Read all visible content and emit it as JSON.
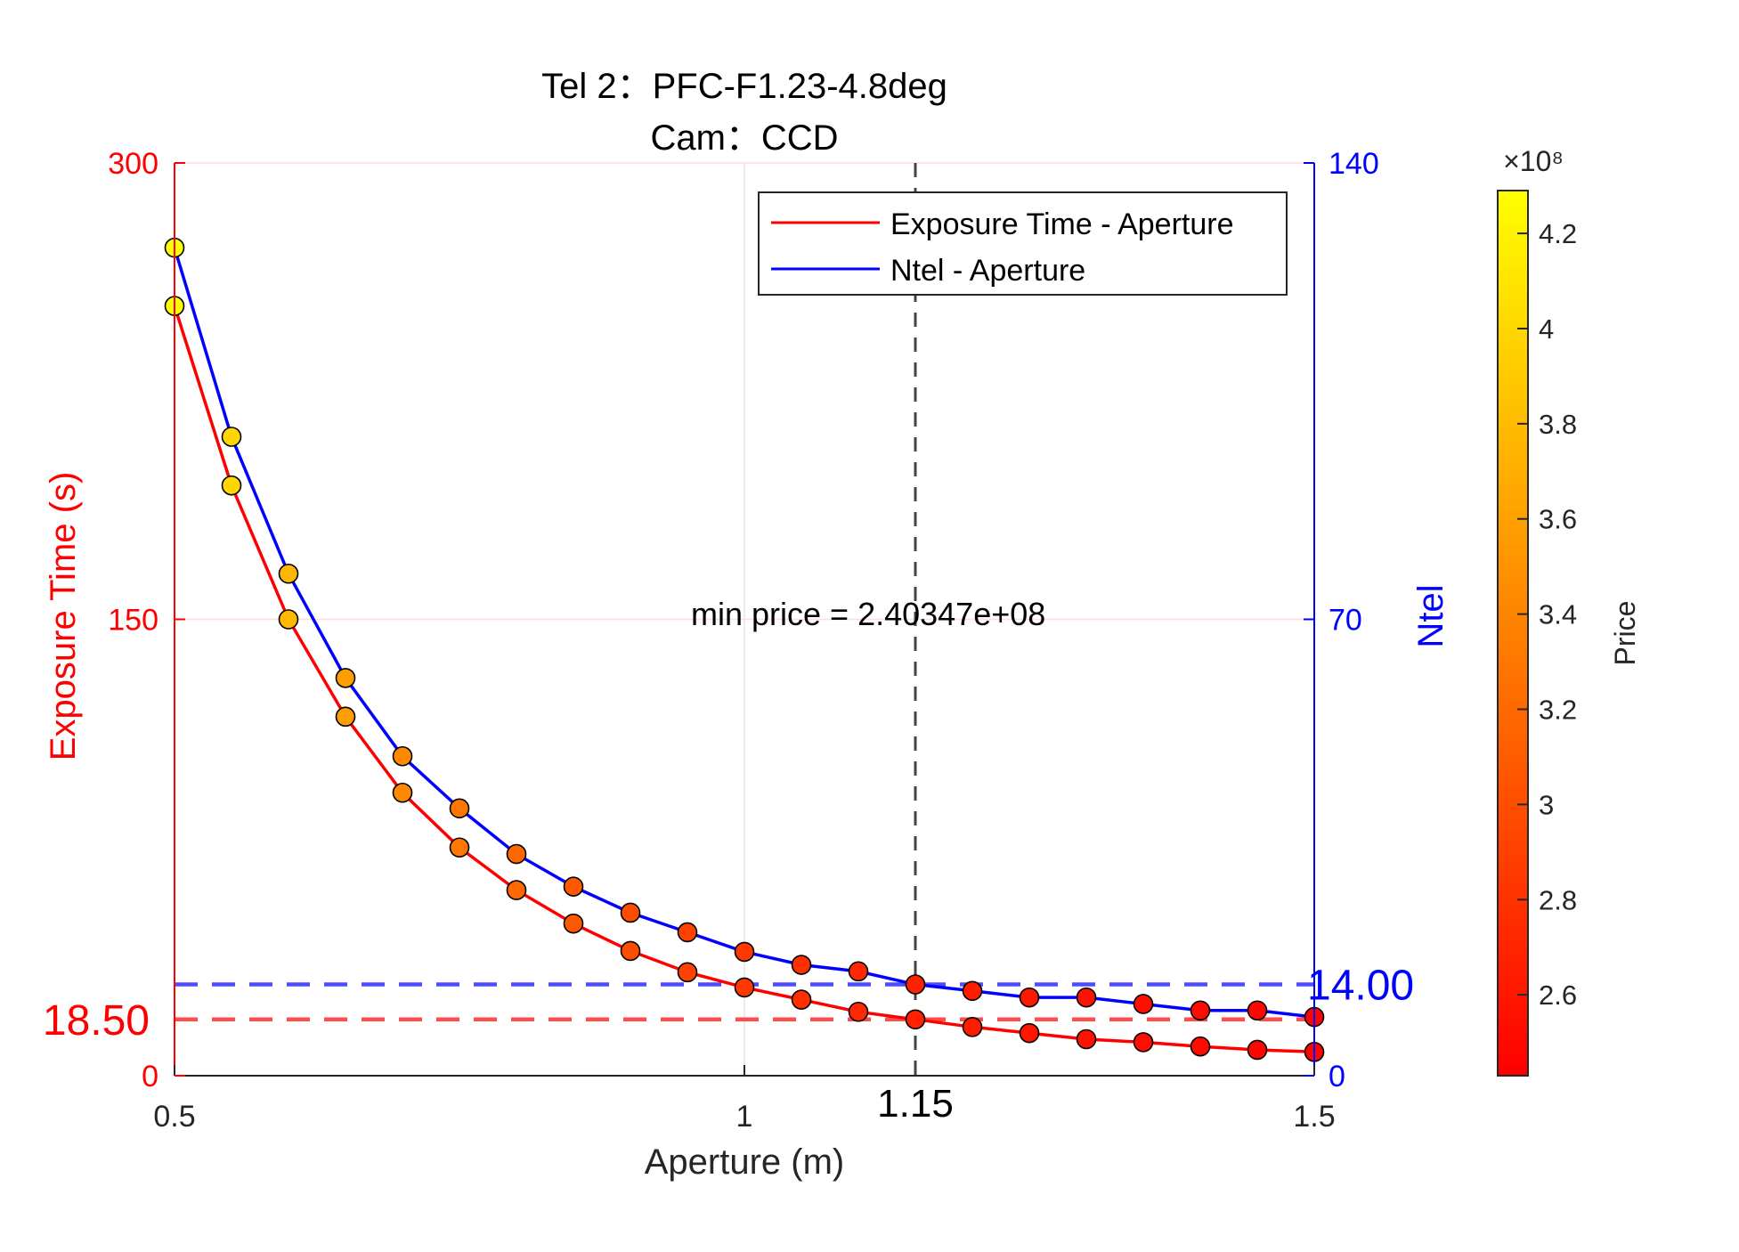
{
  "chart_data": {
    "type": "line",
    "title": [
      "Tel 2：PFC-F1.23-4.8deg",
      "Cam：CCD"
    ],
    "xlabel": "Aperture (m)",
    "ylabel_left": "Exposure Time (s)",
    "ylabel_right": "Ntel",
    "xlim": [
      0.5,
      1.5
    ],
    "ylim_left": [
      0,
      300
    ],
    "ylim_right": [
      0,
      140
    ],
    "x_ticks": [
      {
        "value": 0.5,
        "label": "0.5"
      },
      {
        "value": 1.0,
        "label": "1"
      },
      {
        "value": 1.5,
        "label": "1.5"
      }
    ],
    "y_left_ticks": [
      {
        "value": 0,
        "label": "0"
      },
      {
        "value": 150,
        "label": "150"
      },
      {
        "value": 300,
        "label": "300"
      }
    ],
    "y_right_ticks": [
      {
        "value": 0,
        "label": "0"
      },
      {
        "value": 70,
        "label": "70"
      },
      {
        "value": 140,
        "label": "140"
      }
    ],
    "x": [
      0.5,
      0.55,
      0.6,
      0.65,
      0.7,
      0.75,
      0.8,
      0.85,
      0.9,
      0.95,
      1.0,
      1.05,
      1.1,
      1.15,
      1.2,
      1.25,
      1.3,
      1.35,
      1.4,
      1.45,
      1.5
    ],
    "series": [
      {
        "name": "Exposure Time - Aperture",
        "axis": "left",
        "color": "#ff0000",
        "values": [
          253,
          194,
          150,
          118,
          93,
          75,
          61,
          50,
          41,
          34,
          29,
          25,
          21,
          18.5,
          16,
          14,
          12,
          11,
          9.6,
          8.5,
          7.8
        ]
      },
      {
        "name": "Ntel - Aperture",
        "axis": "right",
        "color": "#0000ff",
        "values": [
          127,
          98,
          77,
          61,
          49,
          41,
          34,
          29,
          25,
          22,
          19,
          17,
          16,
          14,
          13,
          12,
          12,
          11,
          10,
          10,
          9
        ]
      }
    ],
    "price": [
      4.28,
      3.99,
      3.77,
      3.58,
      3.43,
      3.3,
      3.18,
      3.08,
      2.99,
      2.91,
      2.84,
      2.77,
      2.72,
      2.68,
      2.64,
      2.6,
      2.57,
      2.54,
      2.51,
      2.48,
      2.45
    ],
    "colorbar": {
      "label": "Price",
      "exponent": "×10⁸",
      "range": [
        2.43,
        4.29
      ],
      "ticks": [
        "2.6",
        "2.8",
        "3",
        "3.2",
        "3.4",
        "3.6",
        "3.8",
        "4",
        "4.2"
      ],
      "tick_values": [
        2.6,
        2.8,
        3.0,
        3.2,
        3.4,
        3.6,
        3.8,
        4.0,
        4.2
      ],
      "colormap": "autumn"
    },
    "optimal_aperture": 1.15,
    "optimal_aperture_label": "1.15",
    "optimal_exposure": 18.5,
    "optimal_exposure_label": "18.50",
    "optimal_ntel": 14,
    "optimal_ntel_label": "14.00",
    "annotation": "min price = 2.40347e+08",
    "legend_position": "top-right",
    "grid": true,
    "colors": {
      "left_axis": "#ff0000",
      "right_axis": "#0000ff",
      "ref_red": "#ff4d4d",
      "ref_blue": "#4d4dff",
      "vline": "#444444"
    }
  }
}
